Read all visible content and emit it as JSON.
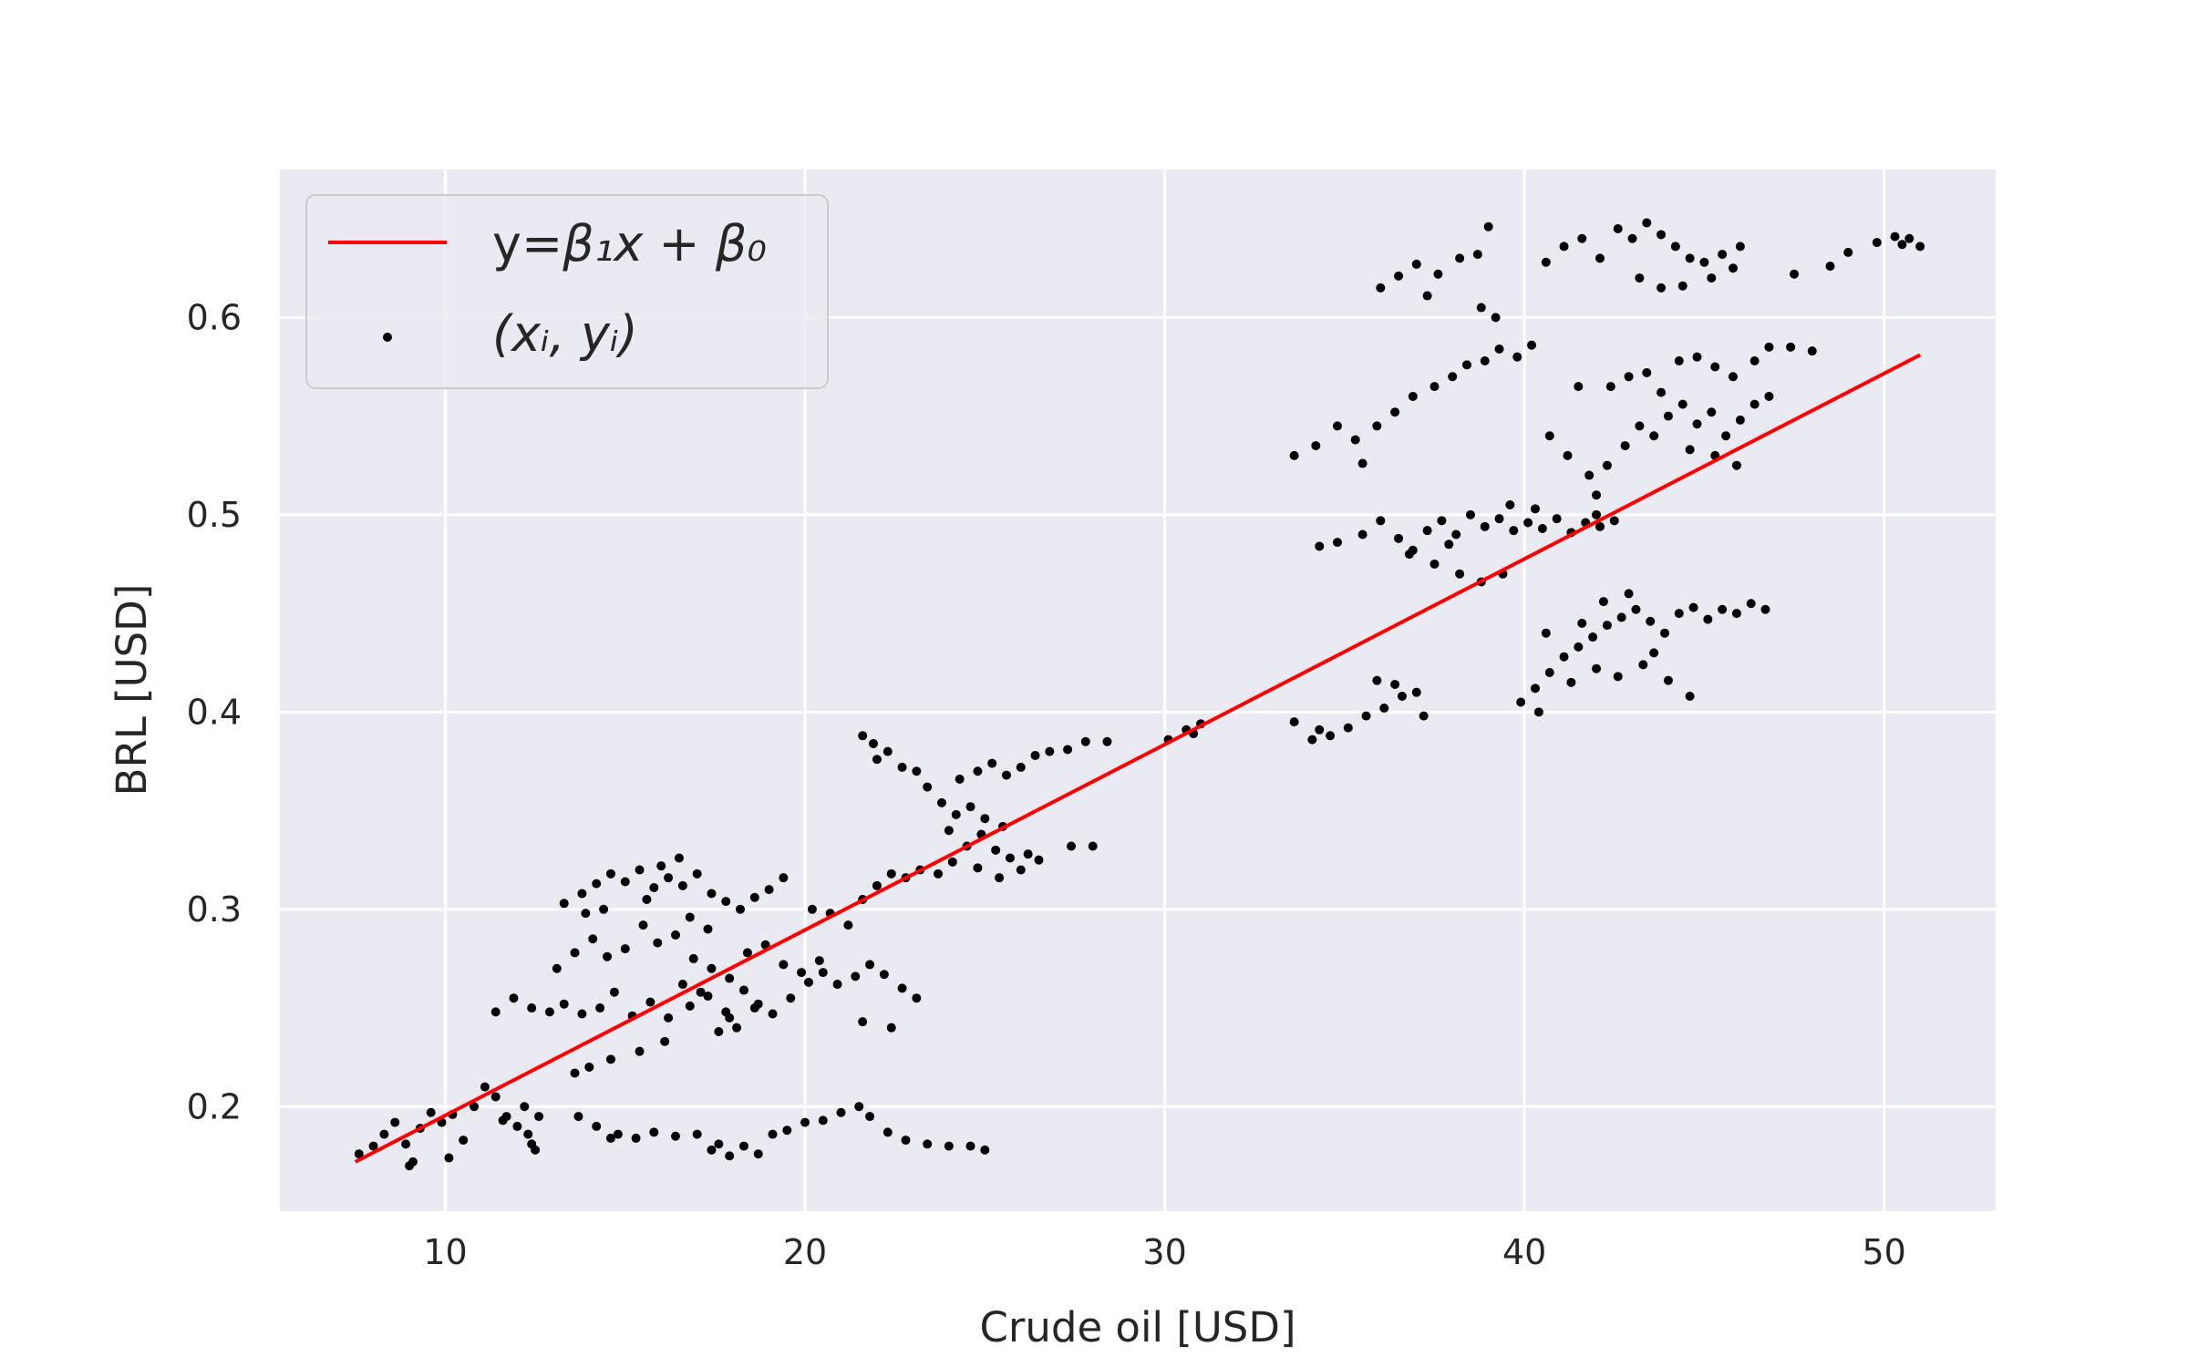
{
  "chart_data": {
    "type": "scatter",
    "xlabel": "Crude oil [USD]",
    "ylabel": "BRL [USD]",
    "xlim": [
      5.4,
      53.1
    ],
    "ylim": [
      0.147,
      0.675
    ],
    "xticks": [
      10,
      20,
      30,
      40,
      50
    ],
    "yticks": [
      0.2,
      0.3,
      0.4,
      0.5,
      0.6
    ],
    "xtick_labels": [
      "10",
      "20",
      "30",
      "40",
      "50"
    ],
    "ytick_labels": [
      "0.2",
      "0.3",
      "0.4",
      "0.5",
      "0.6"
    ],
    "grid": true,
    "legend_position": "top-left",
    "legend": [
      {
        "label_prefix": "y=",
        "label_math": "β₁x + β₀",
        "marker": "line",
        "color": "#ff0000"
      },
      {
        "label_math": "(xᵢ, yᵢ)",
        "marker": "point",
        "color": "#000000"
      }
    ],
    "fit_line": {
      "name": "y=β₁x + β₀",
      "color": "#ff0000",
      "x": [
        7.5,
        51.0
      ],
      "y": [
        0.172,
        0.581
      ]
    },
    "scatter": {
      "name": "(xᵢ, yᵢ)",
      "color": "#000000",
      "points": [
        [
          7.6,
          0.176
        ],
        [
          8.0,
          0.18
        ],
        [
          8.3,
          0.186
        ],
        [
          8.6,
          0.192
        ],
        [
          8.9,
          0.181
        ],
        [
          9.1,
          0.172
        ],
        [
          9.3,
          0.189
        ],
        [
          9.6,
          0.197
        ],
        [
          9.9,
          0.192
        ],
        [
          10.2,
          0.196
        ],
        [
          10.5,
          0.183
        ],
        [
          10.8,
          0.2
        ],
        [
          11.1,
          0.21
        ],
        [
          11.4,
          0.205
        ],
        [
          11.7,
          0.195
        ],
        [
          12.0,
          0.19
        ],
        [
          12.3,
          0.186
        ],
        [
          12.5,
          0.178
        ],
        [
          12.6,
          0.195
        ],
        [
          12.4,
          0.181
        ],
        [
          10.1,
          0.174
        ],
        [
          9.0,
          0.17
        ],
        [
          11.6,
          0.193
        ],
        [
          12.2,
          0.2
        ],
        [
          13.7,
          0.195
        ],
        [
          14.2,
          0.19
        ],
        [
          14.8,
          0.186
        ],
        [
          15.3,
          0.184
        ],
        [
          15.8,
          0.187
        ],
        [
          16.4,
          0.185
        ],
        [
          17.0,
          0.186
        ],
        [
          17.4,
          0.178
        ],
        [
          17.9,
          0.175
        ],
        [
          18.3,
          0.18
        ],
        [
          18.7,
          0.176
        ],
        [
          19.1,
          0.186
        ],
        [
          19.5,
          0.188
        ],
        [
          20.0,
          0.192
        ],
        [
          20.5,
          0.193
        ],
        [
          21.0,
          0.197
        ],
        [
          21.5,
          0.2
        ],
        [
          21.8,
          0.195
        ],
        [
          22.3,
          0.187
        ],
        [
          22.8,
          0.183
        ],
        [
          23.4,
          0.181
        ],
        [
          24.0,
          0.18
        ],
        [
          24.6,
          0.18
        ],
        [
          25.0,
          0.178
        ],
        [
          14.6,
          0.184
        ],
        [
          17.6,
          0.181
        ],
        [
          11.4,
          0.248
        ],
        [
          11.9,
          0.255
        ],
        [
          12.4,
          0.25
        ],
        [
          12.9,
          0.248
        ],
        [
          13.3,
          0.252
        ],
        [
          13.8,
          0.247
        ],
        [
          14.3,
          0.25
        ],
        [
          14.7,
          0.258
        ],
        [
          15.2,
          0.246
        ],
        [
          15.7,
          0.253
        ],
        [
          16.2,
          0.245
        ],
        [
          16.8,
          0.251
        ],
        [
          17.3,
          0.256
        ],
        [
          17.8,
          0.248
        ],
        [
          18.3,
          0.259
        ],
        [
          18.7,
          0.252
        ],
        [
          19.1,
          0.247
        ],
        [
          19.6,
          0.255
        ],
        [
          20.1,
          0.263
        ],
        [
          20.5,
          0.268
        ],
        [
          20.9,
          0.262
        ],
        [
          21.4,
          0.266
        ],
        [
          21.8,
          0.272
        ],
        [
          22.2,
          0.267
        ],
        [
          22.7,
          0.26
        ],
        [
          23.1,
          0.255
        ],
        [
          21.6,
          0.243
        ],
        [
          22.4,
          0.24
        ],
        [
          13.1,
          0.27
        ],
        [
          13.6,
          0.278
        ],
        [
          14.1,
          0.285
        ],
        [
          14.5,
          0.276
        ],
        [
          15.0,
          0.28
        ],
        [
          15.5,
          0.292
        ],
        [
          15.9,
          0.283
        ],
        [
          16.4,
          0.287
        ],
        [
          16.9,
          0.275
        ],
        [
          17.4,
          0.27
        ],
        [
          17.9,
          0.265
        ],
        [
          18.4,
          0.278
        ],
        [
          18.9,
          0.282
        ],
        [
          19.4,
          0.272
        ],
        [
          19.9,
          0.268
        ],
        [
          20.4,
          0.274
        ],
        [
          16.6,
          0.262
        ],
        [
          17.1,
          0.258
        ],
        [
          17.6,
          0.238
        ],
        [
          18.1,
          0.24
        ],
        [
          16.1,
          0.233
        ],
        [
          15.4,
          0.228
        ],
        [
          14.6,
          0.224
        ],
        [
          14.0,
          0.22
        ],
        [
          13.6,
          0.217
        ],
        [
          17.9,
          0.245
        ],
        [
          18.6,
          0.25
        ],
        [
          13.3,
          0.303
        ],
        [
          13.8,
          0.308
        ],
        [
          14.2,
          0.313
        ],
        [
          14.6,
          0.318
        ],
        [
          15.0,
          0.314
        ],
        [
          15.4,
          0.32
        ],
        [
          15.8,
          0.311
        ],
        [
          16.2,
          0.316
        ],
        [
          16.6,
          0.312
        ],
        [
          17.0,
          0.318
        ],
        [
          17.4,
          0.308
        ],
        [
          17.8,
          0.304
        ],
        [
          18.2,
          0.3
        ],
        [
          18.6,
          0.306
        ],
        [
          19.0,
          0.31
        ],
        [
          19.4,
          0.316
        ],
        [
          14.4,
          0.3
        ],
        [
          15.6,
          0.305
        ],
        [
          16.8,
          0.296
        ],
        [
          17.3,
          0.29
        ],
        [
          13.9,
          0.298
        ],
        [
          16.0,
          0.322
        ],
        [
          16.5,
          0.326
        ],
        [
          20.2,
          0.3
        ],
        [
          20.7,
          0.298
        ],
        [
          21.2,
          0.292
        ],
        [
          21.6,
          0.305
        ],
        [
          22.0,
          0.312
        ],
        [
          22.4,
          0.318
        ],
        [
          22.8,
          0.316
        ],
        [
          23.2,
          0.32
        ],
        [
          23.7,
          0.318
        ],
        [
          24.1,
          0.324
        ],
        [
          24.5,
          0.332
        ],
        [
          24.9,
          0.338
        ],
        [
          25.3,
          0.33
        ],
        [
          25.7,
          0.326
        ],
        [
          26.0,
          0.32
        ],
        [
          25.4,
          0.316
        ],
        [
          24.8,
          0.321
        ],
        [
          26.2,
          0.328
        ],
        [
          25.0,
          0.346
        ],
        [
          24.6,
          0.352
        ],
        [
          24.2,
          0.348
        ],
        [
          23.8,
          0.354
        ],
        [
          23.4,
          0.362
        ],
        [
          23.1,
          0.37
        ],
        [
          22.7,
          0.372
        ],
        [
          22.3,
          0.38
        ],
        [
          21.9,
          0.384
        ],
        [
          21.6,
          0.388
        ],
        [
          22.0,
          0.376
        ],
        [
          24.3,
          0.366
        ],
        [
          24.8,
          0.37
        ],
        [
          25.2,
          0.374
        ],
        [
          25.6,
          0.368
        ],
        [
          26.0,
          0.372
        ],
        [
          26.4,
          0.378
        ],
        [
          26.8,
          0.38
        ],
        [
          27.3,
          0.381
        ],
        [
          27.8,
          0.385
        ],
        [
          28.4,
          0.385
        ],
        [
          24.0,
          0.34
        ],
        [
          25.5,
          0.342
        ],
        [
          26.5,
          0.325
        ],
        [
          27.4,
          0.332
        ],
        [
          28.0,
          0.332
        ],
        [
          30.1,
          0.386
        ],
        [
          30.6,
          0.391
        ],
        [
          31.0,
          0.394
        ],
        [
          30.8,
          0.389
        ],
        [
          33.6,
          0.395
        ],
        [
          34.1,
          0.386
        ],
        [
          34.6,
          0.388
        ],
        [
          35.1,
          0.392
        ],
        [
          35.6,
          0.398
        ],
        [
          36.1,
          0.402
        ],
        [
          36.6,
          0.408
        ],
        [
          37.0,
          0.41
        ],
        [
          36.4,
          0.414
        ],
        [
          35.9,
          0.416
        ],
        [
          37.2,
          0.398
        ],
        [
          34.3,
          0.391
        ],
        [
          33.6,
          0.53
        ],
        [
          34.2,
          0.535
        ],
        [
          34.8,
          0.545
        ],
        [
          35.3,
          0.538
        ],
        [
          35.9,
          0.545
        ],
        [
          36.4,
          0.552
        ],
        [
          36.9,
          0.56
        ],
        [
          37.5,
          0.565
        ],
        [
          38.0,
          0.57
        ],
        [
          38.4,
          0.576
        ],
        [
          38.9,
          0.578
        ],
        [
          39.3,
          0.584
        ],
        [
          39.8,
          0.58
        ],
        [
          40.2,
          0.586
        ],
        [
          35.5,
          0.526
        ],
        [
          36.0,
          0.615
        ],
        [
          36.5,
          0.621
        ],
        [
          37.0,
          0.627
        ],
        [
          37.6,
          0.622
        ],
        [
          38.2,
          0.63
        ],
        [
          38.7,
          0.632
        ],
        [
          39.0,
          0.646
        ],
        [
          38.8,
          0.605
        ],
        [
          39.2,
          0.6
        ],
        [
          37.3,
          0.611
        ],
        [
          34.3,
          0.484
        ],
        [
          34.8,
          0.486
        ],
        [
          35.5,
          0.49
        ],
        [
          36.0,
          0.497
        ],
        [
          36.5,
          0.488
        ],
        [
          36.9,
          0.482
        ],
        [
          37.3,
          0.492
        ],
        [
          37.7,
          0.497
        ],
        [
          38.1,
          0.49
        ],
        [
          38.5,
          0.5
        ],
        [
          38.9,
          0.494
        ],
        [
          39.3,
          0.498
        ],
        [
          39.7,
          0.492
        ],
        [
          40.1,
          0.496
        ],
        [
          40.5,
          0.493
        ],
        [
          40.9,
          0.498
        ],
        [
          41.3,
          0.491
        ],
        [
          41.7,
          0.496
        ],
        [
          42.1,
          0.494
        ],
        [
          42.5,
          0.497
        ],
        [
          37.5,
          0.475
        ],
        [
          38.2,
          0.47
        ],
        [
          38.8,
          0.466
        ],
        [
          39.4,
          0.47
        ],
        [
          36.8,
          0.48
        ],
        [
          37.9,
          0.485
        ],
        [
          39.6,
          0.505
        ],
        [
          40.3,
          0.503
        ],
        [
          39.9,
          0.405
        ],
        [
          40.3,
          0.412
        ],
        [
          40.7,
          0.42
        ],
        [
          41.1,
          0.428
        ],
        [
          41.5,
          0.433
        ],
        [
          41.9,
          0.438
        ],
        [
          42.3,
          0.444
        ],
        [
          42.7,
          0.448
        ],
        [
          43.1,
          0.452
        ],
        [
          43.5,
          0.446
        ],
        [
          43.9,
          0.44
        ],
        [
          44.3,
          0.45
        ],
        [
          44.7,
          0.453
        ],
        [
          45.1,
          0.447
        ],
        [
          45.5,
          0.452
        ],
        [
          45.9,
          0.45
        ],
        [
          46.3,
          0.455
        ],
        [
          46.7,
          0.452
        ],
        [
          41.3,
          0.415
        ],
        [
          42.0,
          0.422
        ],
        [
          42.6,
          0.418
        ],
        [
          43.3,
          0.424
        ],
        [
          44.0,
          0.416
        ],
        [
          44.6,
          0.408
        ],
        [
          41.6,
          0.445
        ],
        [
          42.2,
          0.456
        ],
        [
          42.9,
          0.46
        ],
        [
          40.6,
          0.44
        ],
        [
          43.6,
          0.43
        ],
        [
          40.4,
          0.4
        ],
        [
          40.7,
          0.54
        ],
        [
          41.2,
          0.53
        ],
        [
          41.8,
          0.52
        ],
        [
          42.3,
          0.525
        ],
        [
          42.8,
          0.535
        ],
        [
          43.2,
          0.545
        ],
        [
          43.6,
          0.54
        ],
        [
          44.0,
          0.55
        ],
        [
          44.4,
          0.556
        ],
        [
          44.8,
          0.546
        ],
        [
          45.2,
          0.552
        ],
        [
          45.6,
          0.54
        ],
        [
          46.0,
          0.548
        ],
        [
          46.4,
          0.556
        ],
        [
          46.8,
          0.56
        ],
        [
          42.4,
          0.565
        ],
        [
          42.9,
          0.57
        ],
        [
          43.4,
          0.572
        ],
        [
          43.8,
          0.562
        ],
        [
          44.3,
          0.578
        ],
        [
          44.8,
          0.58
        ],
        [
          45.3,
          0.575
        ],
        [
          45.8,
          0.57
        ],
        [
          46.4,
          0.578
        ],
        [
          46.8,
          0.585
        ],
        [
          47.4,
          0.585
        ],
        [
          48.0,
          0.583
        ],
        [
          41.5,
          0.565
        ],
        [
          45.9,
          0.525
        ],
        [
          45.3,
          0.53
        ],
        [
          44.6,
          0.533
        ],
        [
          42.0,
          0.51
        ],
        [
          42.0,
          0.5
        ],
        [
          40.6,
          0.628
        ],
        [
          41.1,
          0.636
        ],
        [
          41.6,
          0.64
        ],
        [
          42.1,
          0.63
        ],
        [
          42.6,
          0.645
        ],
        [
          43.0,
          0.64
        ],
        [
          43.4,
          0.648
        ],
        [
          43.8,
          0.642
        ],
        [
          44.2,
          0.636
        ],
        [
          44.6,
          0.63
        ],
        [
          45.0,
          0.628
        ],
        [
          45.5,
          0.632
        ],
        [
          46.0,
          0.636
        ],
        [
          43.2,
          0.62
        ],
        [
          43.8,
          0.615
        ],
        [
          44.4,
          0.616
        ],
        [
          45.2,
          0.62
        ],
        [
          45.8,
          0.625
        ],
        [
          47.5,
          0.622
        ],
        [
          48.5,
          0.626
        ],
        [
          49.0,
          0.633
        ],
        [
          49.8,
          0.638
        ],
        [
          50.3,
          0.641
        ],
        [
          50.7,
          0.64
        ],
        [
          51.0,
          0.636
        ],
        [
          50.5,
          0.637
        ]
      ]
    }
  }
}
